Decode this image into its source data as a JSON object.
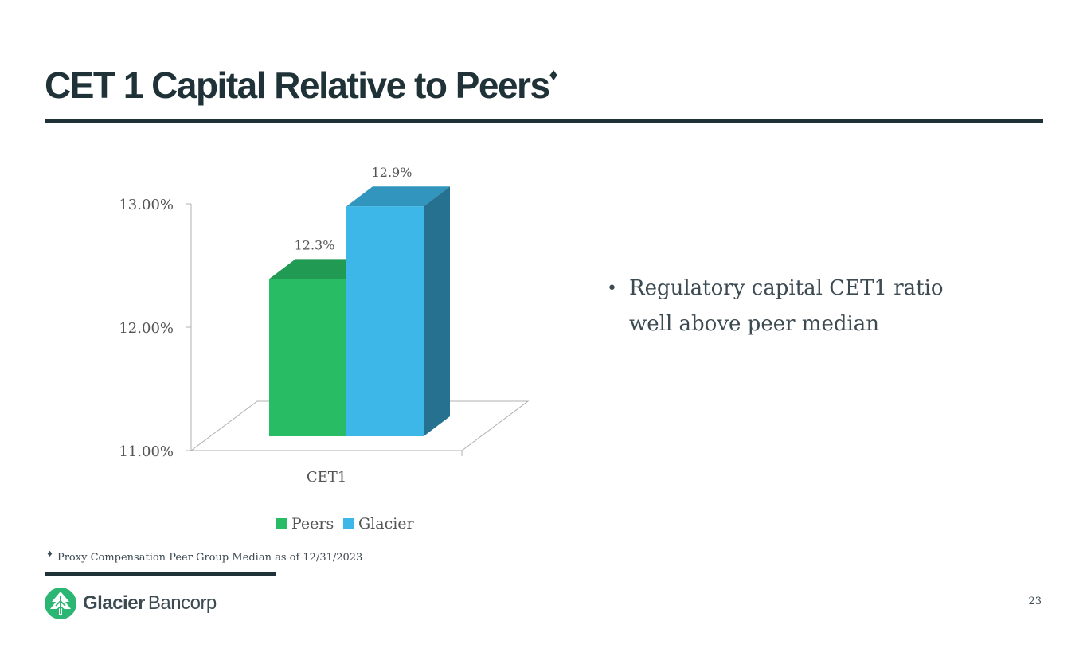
{
  "slide": {
    "title": "CET 1 Capital Relative to Peers",
    "title_mark": "♦",
    "bullets": [
      "Regulatory capital CET1 ratio well above peer median"
    ],
    "footnote_mark": "♦",
    "footnote": "Proxy Compensation Peer Group Median as of 12/31/2023",
    "page_number": "23"
  },
  "logo": {
    "word1": "Glacier",
    "word2": "Bancorp",
    "color": "#2bb673"
  },
  "chart_data": {
    "type": "bar",
    "style": "3d-clustered",
    "categories": [
      "CET1"
    ],
    "series": [
      {
        "name": "Peers",
        "values": [
          12.3
        ],
        "label": "12.3%",
        "color": "#28bd65"
      },
      {
        "name": "Glacier",
        "values": [
          12.9
        ],
        "label": "12.9%",
        "color": "#3db6e8"
      }
    ],
    "y_ticks": [
      "13.00%",
      "12.00%",
      "11.00%"
    ],
    "y_tick_values": [
      13,
      12,
      11
    ],
    "ylim": [
      11,
      13
    ],
    "legend_position": "bottom",
    "grid": false
  }
}
